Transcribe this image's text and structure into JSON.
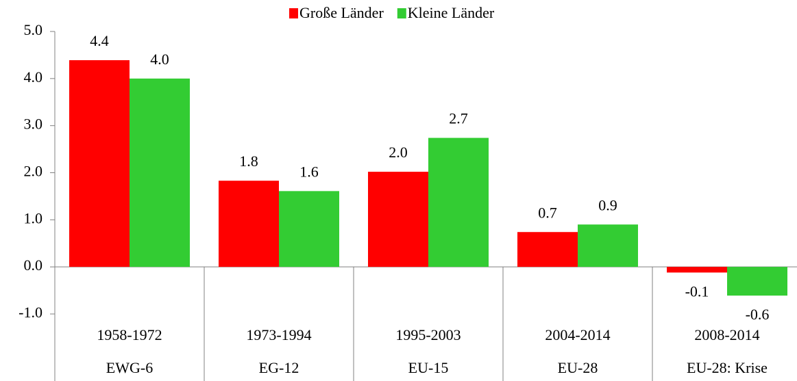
{
  "chart_data": {
    "type": "bar",
    "categories": [
      [
        "1958-1972",
        "EWG-6"
      ],
      [
        "1973-1994",
        "EG-12"
      ],
      [
        "1995-2003",
        "EU-15"
      ],
      [
        "2004-2014",
        "EU-28"
      ],
      [
        "2008-2014",
        "EU-28: Krise"
      ]
    ],
    "series": [
      {
        "name": "Große Länder",
        "color": "#ff0000",
        "values": [
          4.39,
          1.83,
          2.02,
          0.74,
          -0.12
        ],
        "value_labels": [
          "4.4",
          "1.8",
          "2.0",
          "0.7",
          "-0.1"
        ]
      },
      {
        "name": "Kleine Länder",
        "color": "#33cc33",
        "values": [
          4.0,
          1.61,
          2.74,
          0.9,
          -0.61
        ],
        "value_labels": [
          "4.0",
          "1.6",
          "2.7",
          "0.9",
          "-0.6"
        ]
      }
    ],
    "ylim": [
      -1,
      5
    ],
    "yticks": [
      {
        "value": -1,
        "label": "-1.0"
      },
      {
        "value": 0,
        "label": "0.0"
      },
      {
        "value": 1,
        "label": "1.0"
      },
      {
        "value": 2,
        "label": "2.0"
      },
      {
        "value": 3,
        "label": "3.0"
      },
      {
        "value": 4,
        "label": "4.0"
      },
      {
        "value": 5,
        "label": "5.0"
      }
    ],
    "legend": "top"
  }
}
